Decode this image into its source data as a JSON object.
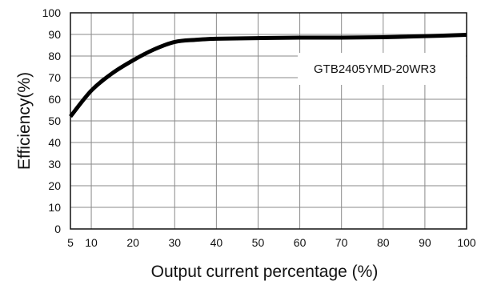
{
  "chart_data": {
    "type": "line",
    "title": "",
    "xlabel": "Output current percentage (%)",
    "ylabel": "Efficiency(%)",
    "xlim": [
      5,
      100
    ],
    "ylim": [
      0,
      100
    ],
    "x_ticks": [
      "5",
      "10",
      "20",
      "30",
      "40",
      "50",
      "60",
      "70",
      "80",
      "90",
      "100"
    ],
    "y_ticks": [
      "0",
      "10",
      "20",
      "30",
      "40",
      "50",
      "60",
      "70",
      "80",
      "90",
      "100"
    ],
    "grid": true,
    "legend_position": "top-right",
    "series": [
      {
        "name": "GTB2405YMD-20WR3",
        "color": "#000000",
        "x": [
          5,
          10,
          15,
          20,
          25,
          30,
          35,
          40,
          50,
          60,
          70,
          80,
          90,
          100
        ],
        "y": [
          52,
          64,
          72,
          78,
          83,
          86.5,
          87.5,
          88,
          88.3,
          88.5,
          88.5,
          88.7,
          89.2,
          89.8
        ]
      }
    ]
  }
}
